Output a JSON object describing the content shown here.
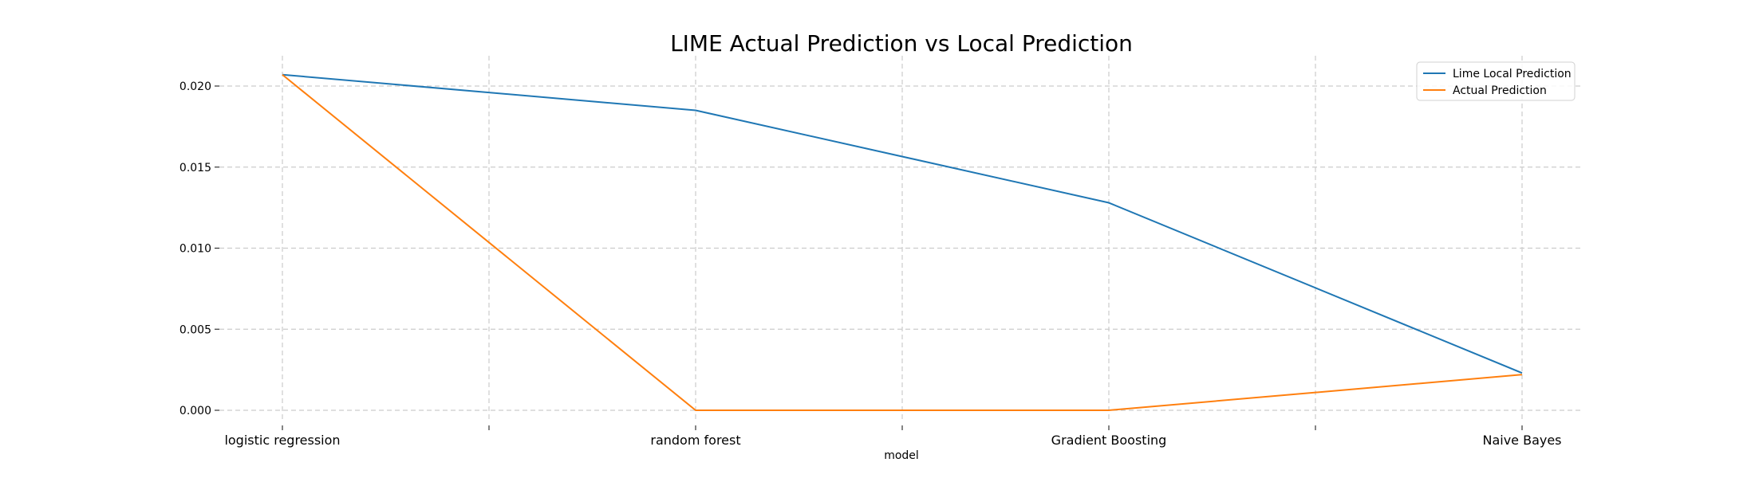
{
  "chart_data": {
    "type": "line",
    "title": "LIME Actual Prediction vs Local Prediction",
    "xlabel": "model",
    "ylabel": "",
    "categories": [
      "logistic regression",
      "random forest",
      "Gradient Boosting",
      "Naive Bayes"
    ],
    "y_ticks": [
      "0.000",
      "0.005",
      "0.010",
      "0.015",
      "0.020"
    ],
    "y_tick_values": [
      0.0,
      0.005,
      0.01,
      0.015,
      0.02
    ],
    "ylim": [
      -0.001,
      0.0217
    ],
    "grid": true,
    "legend_position": "top-right",
    "series": [
      {
        "name": "Lime Local Prediction",
        "color": "#1f77b4",
        "values": [
          0.0207,
          0.0185,
          0.0128,
          0.0023
        ]
      },
      {
        "name": "Actual Prediction",
        "color": "#ff7f0e",
        "values": [
          0.0207,
          0.0,
          0.0,
          0.0022
        ]
      }
    ]
  }
}
